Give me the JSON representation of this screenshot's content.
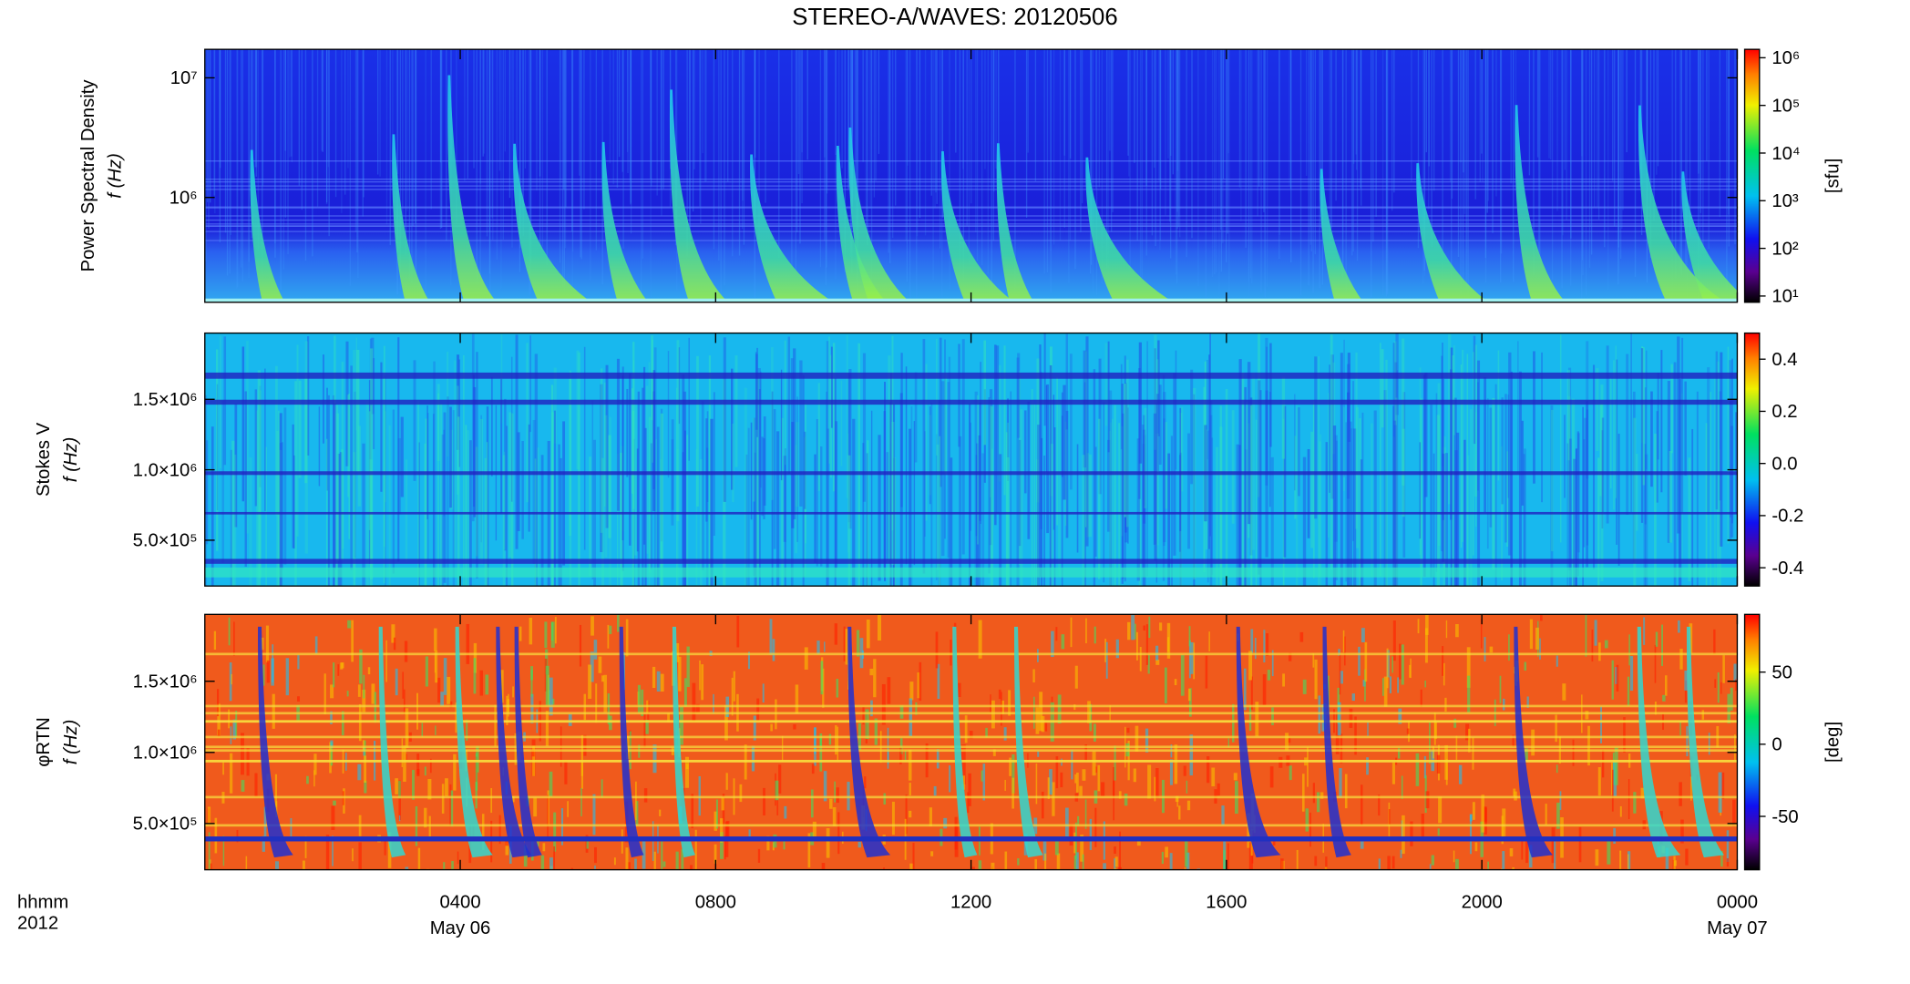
{
  "title": "STEREO-A/WAVES: 20120506",
  "x_axis": {
    "xlim": [
      0,
      24
    ],
    "xticks": [
      {
        "value": 4,
        "label": "0400"
      },
      {
        "value": 8,
        "label": "0800"
      },
      {
        "value": 12,
        "label": "1200"
      },
      {
        "value": 16,
        "label": "1600"
      },
      {
        "value": 20,
        "label": "2000"
      },
      {
        "value": 24,
        "label": "0000"
      }
    ],
    "date_labels": [
      {
        "value": 4,
        "label": "May 06"
      },
      {
        "value": 24,
        "label": "May 07"
      }
    ],
    "row_labels": [
      "hhmm",
      "2012"
    ]
  },
  "chart_data": [
    {
      "type": "heatmap",
      "ylabel": [
        "Power Spectral Density",
        "f (Hz)"
      ],
      "yscale": "log",
      "ylim": [
        133000,
        17300000
      ],
      "yticks": [
        {
          "value": 1000000,
          "label": "10⁶"
        },
        {
          "value": 10000000,
          "label": "10⁷"
        }
      ],
      "colorbar": {
        "scale": "log",
        "clim": [
          7.4,
          1500000
        ],
        "label": "[sfu]",
        "ticks": [
          {
            "value": 10,
            "label": "10¹"
          },
          {
            "value": 100,
            "label": "10²"
          },
          {
            "value": 1000,
            "label": "10³"
          },
          {
            "value": 10000,
            "label": "10⁴"
          },
          {
            "value": 100000,
            "label": "10⁵"
          },
          {
            "value": 1000000,
            "label": "10⁶"
          }
        ]
      }
    },
    {
      "type": "heatmap",
      "ylabel": [
        "Stokes V",
        "f (Hz)"
      ],
      "yscale": "linear",
      "ylim": [
        175000,
        1970000
      ],
      "yticks": [
        {
          "value": 500000,
          "label": "5.0×10⁵"
        },
        {
          "value": 1000000,
          "label": "1.0×10⁶"
        },
        {
          "value": 1500000,
          "label": "1.5×10⁶"
        }
      ],
      "colorbar": {
        "scale": "linear",
        "clim": [
          -0.47,
          0.5
        ],
        "label": null,
        "ticks": [
          -0.4,
          -0.2,
          {
            "value": 0,
            "label": "0.0"
          },
          0.2,
          0.4
        ]
      }
    },
    {
      "type": "heatmap",
      "ylabel": [
        "φRTN",
        "f (Hz)"
      ],
      "yscale": "linear",
      "ylim": [
        175000,
        1970000
      ],
      "yticks": [
        {
          "value": 500000,
          "label": "5.0×10⁵"
        },
        {
          "value": 1000000,
          "label": "1.0×10⁶"
        },
        {
          "value": 1500000,
          "label": "1.5×10⁶"
        }
      ],
      "colorbar": {
        "scale": "linear",
        "clim": [
          -87,
          90
        ],
        "label": "[deg]",
        "ticks": [
          -50,
          0,
          50
        ]
      }
    }
  ]
}
